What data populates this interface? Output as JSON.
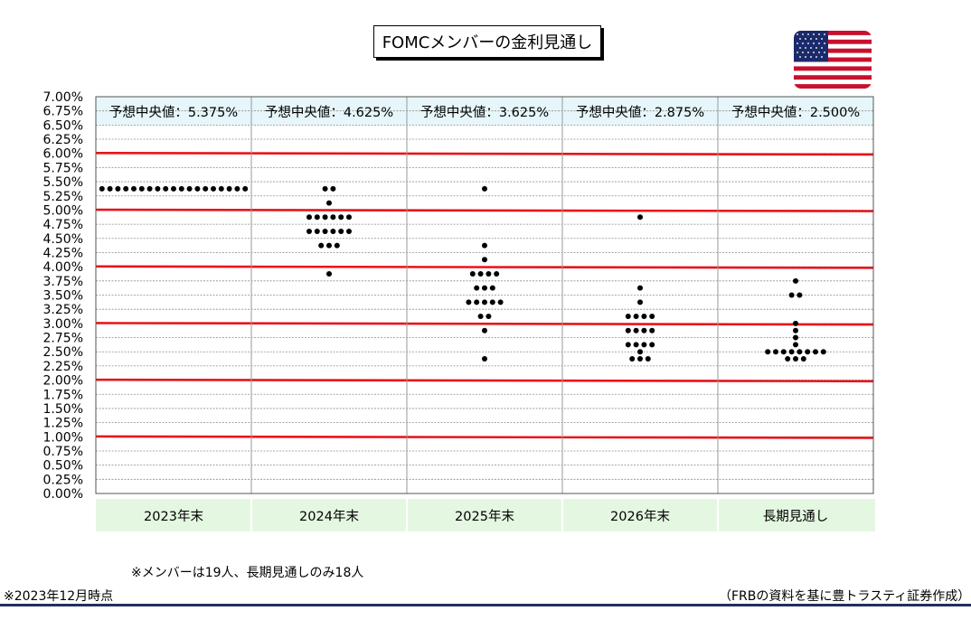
{
  "title": "FOMCメンバーの金利見通し",
  "flag_icon": "us-flag-icon",
  "colors": {
    "gridline_major": "#e8141b",
    "header_band": "#e6f6fb",
    "category_band": "#e4f8e1",
    "dots": "#000000",
    "bottom_rule": "#1f2f5f"
  },
  "chart_data": {
    "type": "scatter",
    "title": "FOMCメンバーの金利見通し",
    "ylim": [
      0,
      7
    ],
    "ytick_step": 0.25,
    "ytick_labels": [
      "0.00%",
      "0.25%",
      "0.50%",
      "0.75%",
      "1.00%",
      "1.25%",
      "1.50%",
      "1.75%",
      "2.00%",
      "2.25%",
      "2.50%",
      "2.75%",
      "3.00%",
      "3.25%",
      "3.50%",
      "3.75%",
      "4.00%",
      "4.25%",
      "4.50%",
      "4.75%",
      "5.00%",
      "5.25%",
      "5.50%",
      "5.75%",
      "6.00%",
      "6.25%",
      "6.50%",
      "6.75%",
      "7.00%"
    ],
    "red_lines": [
      1,
      2,
      3,
      4,
      5,
      6
    ],
    "categories": [
      "2023年末",
      "2024年末",
      "2025年末",
      "2026年末",
      "長期見通し"
    ],
    "medians": [
      "予想中央値：5.375%",
      "予想中央値：4.625%",
      "予想中央値：3.625%",
      "予想中央値：2.875%",
      "予想中央値：2.500%"
    ],
    "dots": [
      [
        {
          "y": 5.375,
          "n": 19
        }
      ],
      [
        {
          "y": 5.375,
          "n": 2
        },
        {
          "y": 5.125,
          "n": 1
        },
        {
          "y": 4.875,
          "n": 6
        },
        {
          "y": 4.625,
          "n": 6
        },
        {
          "y": 4.375,
          "n": 3
        },
        {
          "y": 3.875,
          "n": 1
        }
      ],
      [
        {
          "y": 5.375,
          "n": 1
        },
        {
          "y": 4.375,
          "n": 1
        },
        {
          "y": 4.125,
          "n": 1
        },
        {
          "y": 3.875,
          "n": 4
        },
        {
          "y": 3.625,
          "n": 3
        },
        {
          "y": 3.375,
          "n": 5
        },
        {
          "y": 3.125,
          "n": 2
        },
        {
          "y": 2.875,
          "n": 1
        },
        {
          "y": 2.375,
          "n": 1
        }
      ],
      [
        {
          "y": 4.875,
          "n": 1
        },
        {
          "y": 3.625,
          "n": 1
        },
        {
          "y": 3.375,
          "n": 1
        },
        {
          "y": 3.125,
          "n": 4
        },
        {
          "y": 2.875,
          "n": 4
        },
        {
          "y": 2.625,
          "n": 4
        },
        {
          "y": 2.5,
          "n": 1
        },
        {
          "y": 2.375,
          "n": 3
        }
      ],
      [
        {
          "y": 3.75,
          "n": 1
        },
        {
          "y": 3.5,
          "n": 2
        },
        {
          "y": 3.0,
          "n": 1
        },
        {
          "y": 2.875,
          "n": 1
        },
        {
          "y": 2.75,
          "n": 1
        },
        {
          "y": 2.625,
          "n": 1
        },
        {
          "y": 2.5,
          "n": 8
        },
        {
          "y": 2.375,
          "n": 3
        }
      ]
    ]
  },
  "footer": {
    "note": "※メンバーは19人、長期見通しのみ18人",
    "as_of": "※2023年12月時点",
    "source": "（FRBの資料を基に豊トラスティ証券作成）"
  }
}
